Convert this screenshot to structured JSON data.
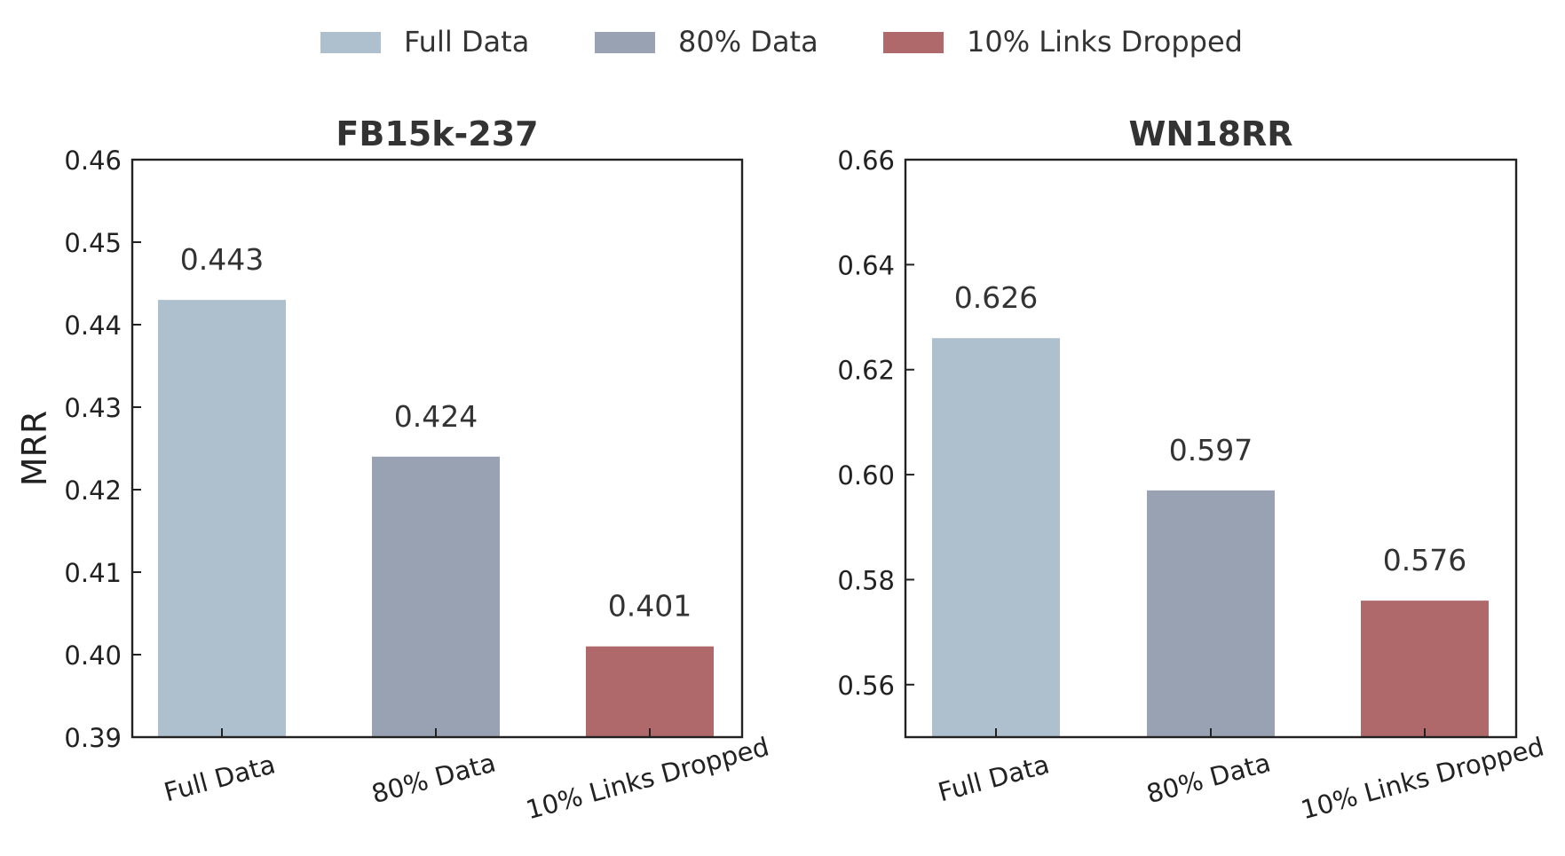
{
  "legend": {
    "placement": "top-center",
    "entries": [
      {
        "label": "Full Data",
        "color": "#aebfcd"
      },
      {
        "label": "80% Data",
        "color": "#98a2b2"
      },
      {
        "label": "10% Links Dropped",
        "color": "#b0696b"
      }
    ]
  },
  "chart_data": [
    {
      "type": "bar",
      "title": "FB15k-237",
      "xlabel": "",
      "ylabel": "MRR",
      "categories": [
        "Full Data",
        "80% Data",
        "10% Links Dropped"
      ],
      "values": [
        0.443,
        0.424,
        0.401
      ],
      "value_labels": [
        "0.443",
        "0.424",
        "0.401"
      ],
      "colors": [
        "#aebfcd",
        "#98a2b2",
        "#b0696b"
      ],
      "ylim": [
        0.39,
        0.46
      ],
      "yticks": [
        0.39,
        0.4,
        0.41,
        0.42,
        0.43,
        0.44,
        0.45,
        0.46
      ],
      "ytick_labels": [
        "0.39",
        "0.40",
        "0.41",
        "0.42",
        "0.43",
        "0.44",
        "0.45",
        "0.46"
      ],
      "grid": false
    },
    {
      "type": "bar",
      "title": "WN18RR",
      "xlabel": "",
      "ylabel": "",
      "categories": [
        "Full Data",
        "80% Data",
        "10% Links Dropped"
      ],
      "values": [
        0.626,
        0.597,
        0.576
      ],
      "value_labels": [
        "0.626",
        "0.597",
        "0.576"
      ],
      "colors": [
        "#aebfcd",
        "#98a2b2",
        "#b0696b"
      ],
      "ylim": [
        0.55,
        0.66
      ],
      "yticks": [
        0.56,
        0.58,
        0.6,
        0.62,
        0.64,
        0.66
      ],
      "ytick_labels": [
        "0.56",
        "0.58",
        "0.60",
        "0.62",
        "0.64",
        "0.66"
      ],
      "grid": false
    }
  ]
}
